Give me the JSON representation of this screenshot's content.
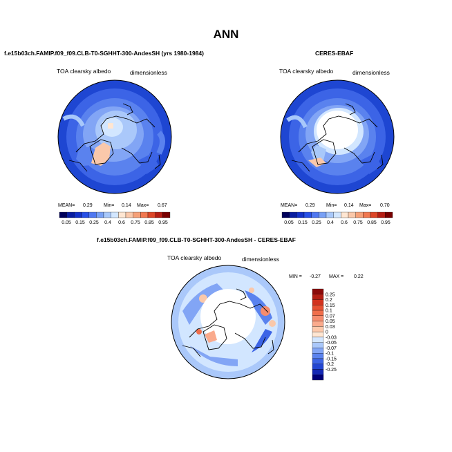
{
  "figure": {
    "title": "ANN"
  },
  "panels": [
    {
      "id": "model",
      "title": "f.e15b03ch.FAMIP.f09_f09.CLB-T0-SGHHT-300-AndesSH (yrs 1980-1984)",
      "variable": "TOA clearsky albedo",
      "units": "dimensionless",
      "stats": {
        "mean_label": "MEAN=",
        "mean": "0.29",
        "min_label": "Min=",
        "min": "0.14",
        "max_label": "Max=",
        "max": "0.67"
      }
    },
    {
      "id": "obs",
      "title": "CERES-EBAF",
      "variable": "TOA clearsky albedo",
      "units": "dimensionless",
      "stats": {
        "mean_label": "MEAN=",
        "mean": "0.29",
        "min_label": "Min=",
        "min": "0.14",
        "max_label": "Max=",
        "max": "0.70"
      }
    },
    {
      "id": "diff",
      "title": "f.e15b03ch.FAMIP.f09_f09.CLB-T0-SGHHT-300-AndesSH - CERES-EBAF",
      "variable": "TOA clearsky albedo",
      "units": "dimensionless",
      "stats": {
        "min_label": "MIN =",
        "min": "-0.27",
        "max_label": "MAX =",
        "max": "0.22"
      }
    }
  ],
  "colorbars": {
    "absolute": {
      "labels": [
        "0.05",
        "0.15",
        "0.25",
        "0.4",
        "0.6",
        "0.75",
        "0.85",
        "0.95"
      ],
      "colors": [
        "#00005a",
        "#0a1ea0",
        "#1432c8",
        "#2850e6",
        "#5078f0",
        "#78a0f5",
        "#a8c8fa",
        "#d2e6ff",
        "#ffe6d2",
        "#fac8aa",
        "#f5a078",
        "#f07850",
        "#dc4628",
        "#b41e14",
        "#780000"
      ]
    },
    "difference": {
      "labels": [
        "0.25",
        "0.2",
        "0.15",
        "0.1",
        "0.07",
        "0.05",
        "0.03",
        "0",
        "-0.03",
        "-0.05",
        "-0.07",
        "-0.1",
        "-0.15",
        "-0.2",
        "-0.25"
      ],
      "colors": [
        "#8c0a0a",
        "#b41e14",
        "#d2321e",
        "#e65032",
        "#f06e4b",
        "#f58c6e",
        "#faaa8c",
        "#fdc8aa",
        "#ffe6d2",
        "#d2e6ff",
        "#aac8fa",
        "#82a5f5",
        "#5a82ee",
        "#3c64e6",
        "#2346d2",
        "#1428b4",
        "#000078"
      ]
    }
  }
}
